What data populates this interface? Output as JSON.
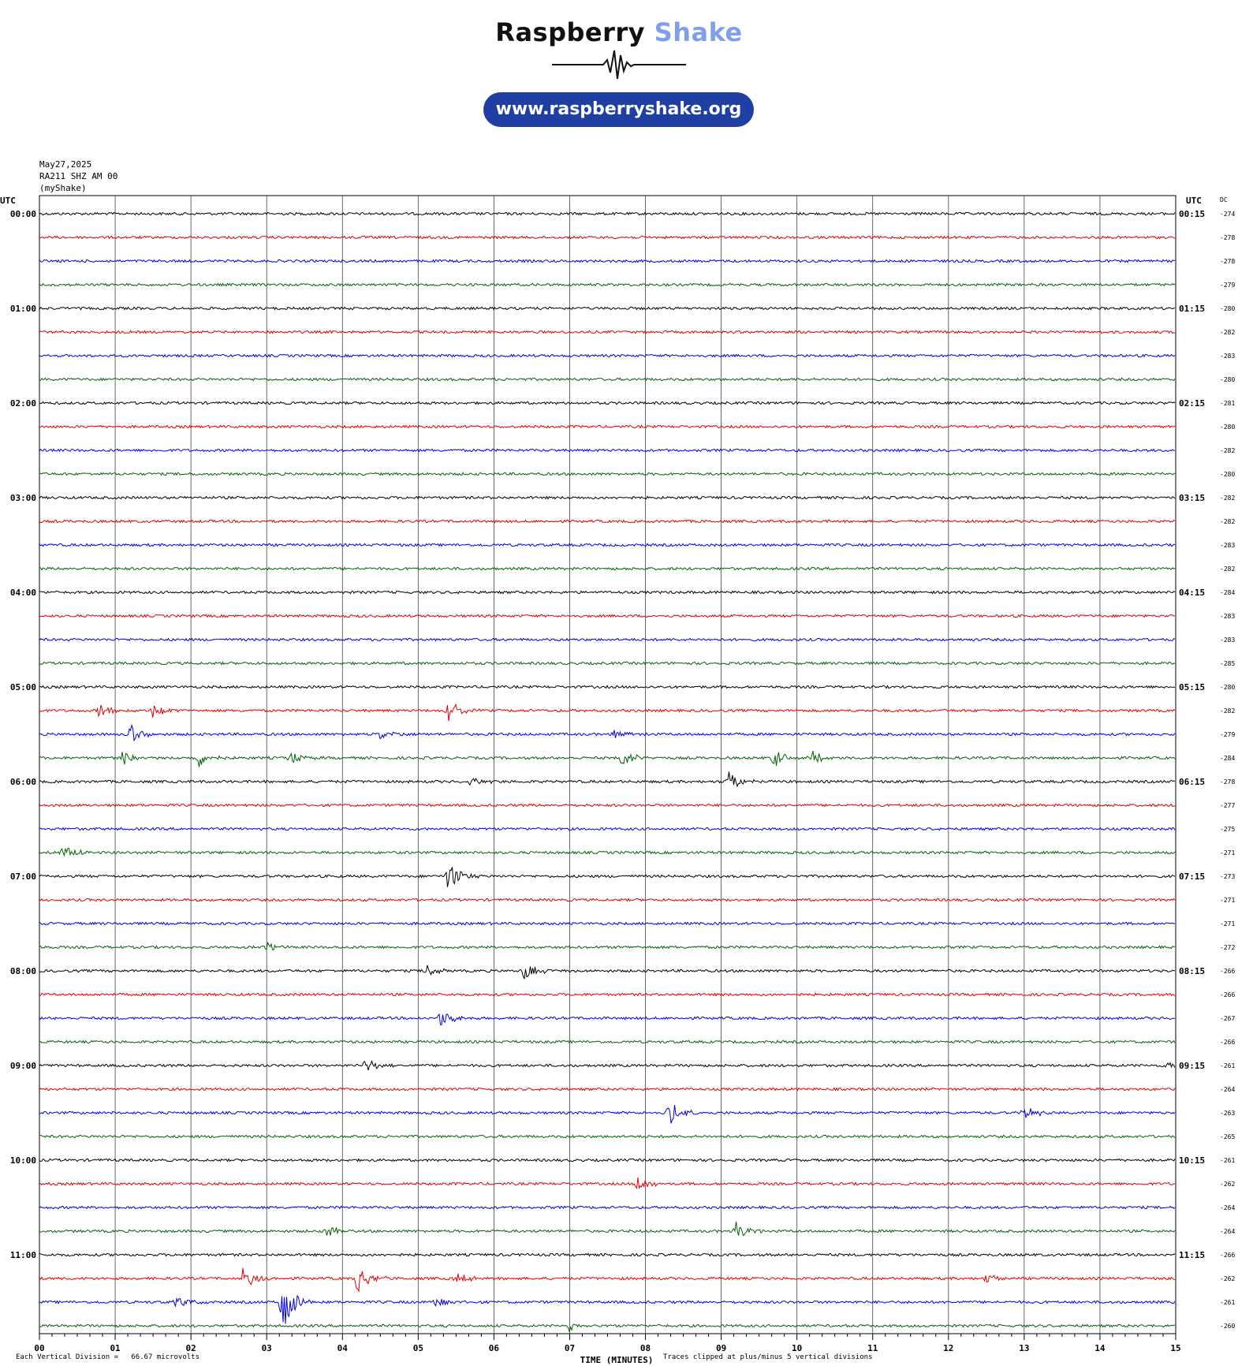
{
  "brand": {
    "title_part1": "Raspberry",
    "title_part2": "Shake",
    "url": "www.raspberryshake.org",
    "colors": {
      "dark": "#111111",
      "light_blue": "#7f9fe6",
      "pill": "#1f3fa5"
    }
  },
  "header": {
    "date": "May27,2025",
    "station": "RA211 SHZ AM 00",
    "network": "(myShake)"
  },
  "chart_data": {
    "type": "line",
    "left_axis_title": "UTC",
    "right_axis_title": "UTC",
    "dc_title": "DC",
    "left_hour_labels": [
      "00:00",
      "01:00",
      "02:00",
      "03:00",
      "04:00",
      "05:00",
      "06:00",
      "07:00",
      "08:00",
      "09:00",
      "10:00",
      "11:00"
    ],
    "right_hour_labels": [
      "00:15",
      "01:15",
      "02:15",
      "03:15",
      "04:15",
      "05:15",
      "06:15",
      "07:15",
      "08:15",
      "09:15",
      "10:15",
      "11:15"
    ],
    "dc_offsets": [
      "-274",
      "-278",
      "-278",
      "-279",
      "-280",
      "-282",
      "-283",
      "-280",
      "-281",
      "-280",
      "-282",
      "-280",
      "-282",
      "-282",
      "-283",
      "-282",
      "-284",
      "-283",
      "-283",
      "-285",
      "-280",
      "-282",
      "-279",
      "-284",
      "-278",
      "-277",
      "-275",
      "-271",
      "-273",
      "-271",
      "-271",
      "-272",
      "-266",
      "-266",
      "-267",
      "-266",
      "-261",
      "-264",
      "-263",
      "-265",
      "-261",
      "-262",
      "-264",
      "-264",
      "-266",
      "-262",
      "-261",
      "-260"
    ],
    "trace_colors": [
      "#000000",
      "#e00000",
      "#0000e0",
      "#006400"
    ],
    "x_ticks": [
      "00",
      "01",
      "02",
      "03",
      "04",
      "05",
      "06",
      "07",
      "08",
      "09",
      "10",
      "11",
      "12",
      "13",
      "14",
      "15"
    ],
    "x_range": [
      0,
      15
    ],
    "xlabel": "TIME (MINUTES)",
    "grid": true,
    "events": [
      {
        "row": 21,
        "t": 0.8,
        "amp": 1.3
      },
      {
        "row": 21,
        "t": 1.5,
        "amp": 1.2
      },
      {
        "row": 21,
        "t": 5.4,
        "amp": 1.6
      },
      {
        "row": 22,
        "t": 1.2,
        "amp": 1.4
      },
      {
        "row": 22,
        "t": 4.5,
        "amp": 0.8
      },
      {
        "row": 22,
        "t": 7.6,
        "amp": 0.8
      },
      {
        "row": 23,
        "t": 1.1,
        "amp": 1.2
      },
      {
        "row": 23,
        "t": 2.1,
        "amp": 1.3
      },
      {
        "row": 23,
        "t": 3.3,
        "amp": 1.0
      },
      {
        "row": 23,
        "t": 7.7,
        "amp": 1.3
      },
      {
        "row": 23,
        "t": 9.7,
        "amp": 1.2
      },
      {
        "row": 23,
        "t": 10.2,
        "amp": 0.9
      },
      {
        "row": 24,
        "t": 5.7,
        "amp": 0.7
      },
      {
        "row": 24,
        "t": 9.1,
        "amp": 1.6
      },
      {
        "row": 27,
        "t": 0.3,
        "amp": 1.3
      },
      {
        "row": 28,
        "t": 5.4,
        "amp": 2.2
      },
      {
        "row": 31,
        "t": 3.0,
        "amp": 0.8
      },
      {
        "row": 32,
        "t": 5.1,
        "amp": 1.0
      },
      {
        "row": 32,
        "t": 6.4,
        "amp": 1.3
      },
      {
        "row": 34,
        "t": 5.3,
        "amp": 1.3
      },
      {
        "row": 36,
        "t": 4.3,
        "amp": 1.1
      },
      {
        "row": 36,
        "t": 14.9,
        "amp": 0.9
      },
      {
        "row": 38,
        "t": 8.3,
        "amp": 1.9
      },
      {
        "row": 38,
        "t": 13.0,
        "amp": 1.1
      },
      {
        "row": 41,
        "t": 7.9,
        "amp": 1.1
      },
      {
        "row": 43,
        "t": 3.8,
        "amp": 0.9
      },
      {
        "row": 43,
        "t": 9.2,
        "amp": 1.3
      },
      {
        "row": 45,
        "t": 2.7,
        "amp": 1.9
      },
      {
        "row": 45,
        "t": 4.2,
        "amp": 2.0
      },
      {
        "row": 45,
        "t": 5.5,
        "amp": 1.0
      },
      {
        "row": 45,
        "t": 12.5,
        "amp": 0.7
      },
      {
        "row": 46,
        "t": 3.2,
        "amp": 4.5
      },
      {
        "row": 46,
        "t": 1.8,
        "amp": 0.9
      },
      {
        "row": 46,
        "t": 5.2,
        "amp": 0.9
      },
      {
        "row": 47,
        "t": 7.0,
        "amp": 0.8
      }
    ]
  },
  "footer": {
    "scale_note": "Each Vertical Division =   66.67 microvolts",
    "clip_note": "Traces clipped at plus/minus 5 vertical divisions"
  }
}
